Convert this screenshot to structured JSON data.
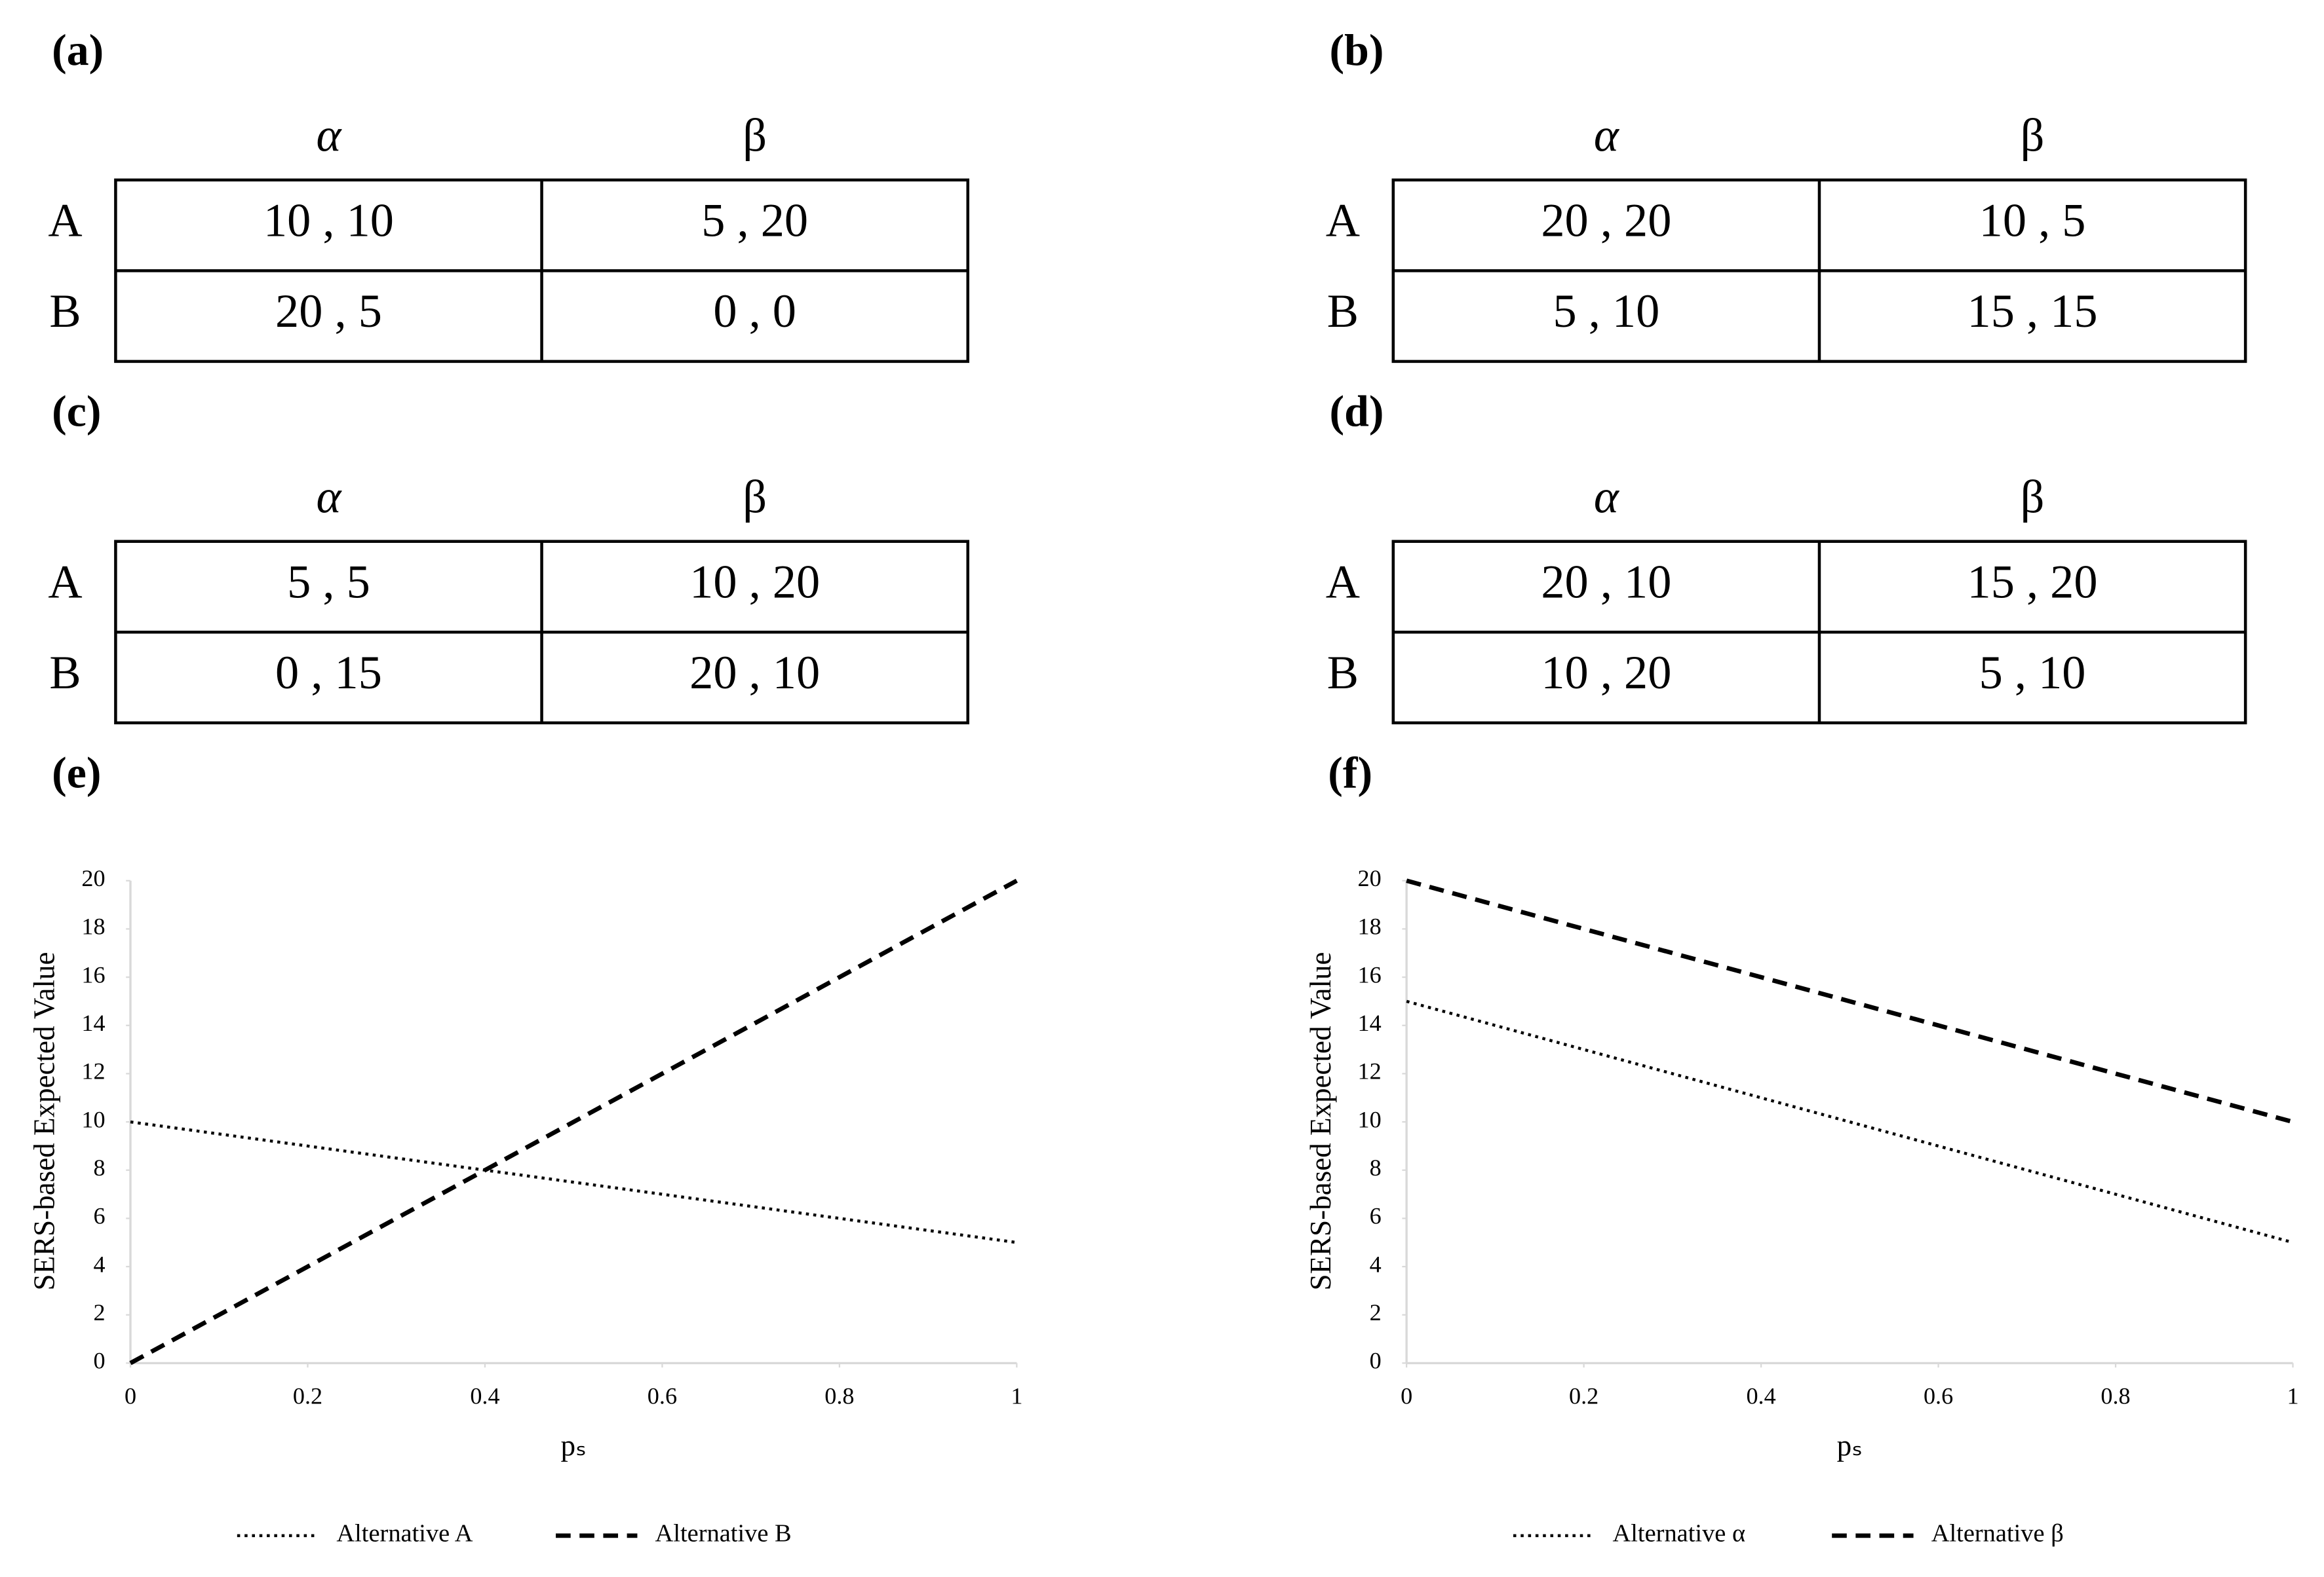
{
  "tables": [
    {
      "label": "(a)",
      "columns": [
        "α",
        "β"
      ],
      "rows": [
        {
          "header": "A",
          "cells": [
            "10 , 10",
            "5 , 20"
          ]
        },
        {
          "header": "B",
          "cells": [
            "20 , 5",
            "0 , 0"
          ]
        }
      ]
    },
    {
      "label": "(b)",
      "columns": [
        "α",
        "β"
      ],
      "rows": [
        {
          "header": "A",
          "cells": [
            "20 , 20",
            "10 , 5"
          ]
        },
        {
          "header": "B",
          "cells": [
            "5 , 10",
            "15 , 15"
          ]
        }
      ]
    },
    {
      "label": "(c)",
      "columns": [
        "α",
        "β"
      ],
      "rows": [
        {
          "header": "A",
          "cells": [
            "5 , 5",
            "10 , 20"
          ]
        },
        {
          "header": "B",
          "cells": [
            "0 , 15",
            "20 , 10"
          ]
        }
      ]
    },
    {
      "label": "(d)",
      "columns": [
        "α",
        "β"
      ],
      "rows": [
        {
          "header": "A",
          "cells": [
            "20 , 10",
            "15 , 20"
          ]
        },
        {
          "header": "B",
          "cells": [
            "10 , 20",
            "5 , 10"
          ]
        }
      ]
    }
  ],
  "chart_data": [
    {
      "type": "line",
      "label": "(e)",
      "x_label": "pₛ",
      "y_label": "SERS-based Expected Value",
      "x": [
        0,
        1
      ],
      "xlim": [
        0,
        1
      ],
      "xticks": [
        0,
        0.2,
        0.4,
        0.6,
        0.8,
        1
      ],
      "ylim": [
        0,
        20
      ],
      "yticks": [
        0,
        2,
        4,
        6,
        8,
        10,
        12,
        14,
        16,
        18,
        20
      ],
      "series": [
        {
          "name": "Alternative A",
          "color": "#000000",
          "style": "dotted",
          "values": [
            10,
            5
          ]
        },
        {
          "name": "Alternative B",
          "color": "#000000",
          "style": "dashed",
          "values": [
            0,
            20
          ]
        }
      ]
    },
    {
      "type": "line",
      "label": "(f)",
      "x_label": "pₛ",
      "y_label": "SERS-based Expected Value",
      "x": [
        0,
        1
      ],
      "xlim": [
        0,
        1
      ],
      "xticks": [
        0,
        0.2,
        0.4,
        0.6,
        0.8,
        1
      ],
      "ylim": [
        0,
        20
      ],
      "yticks": [
        0,
        2,
        4,
        6,
        8,
        10,
        12,
        14,
        16,
        18,
        20
      ],
      "series": [
        {
          "name": "Alternative  α",
          "color": "#000000",
          "style": "dotted",
          "values": [
            15,
            5
          ]
        },
        {
          "name": "Alternative  β",
          "color": "#000000",
          "style": "dashed",
          "values": [
            20,
            10
          ]
        }
      ]
    }
  ]
}
